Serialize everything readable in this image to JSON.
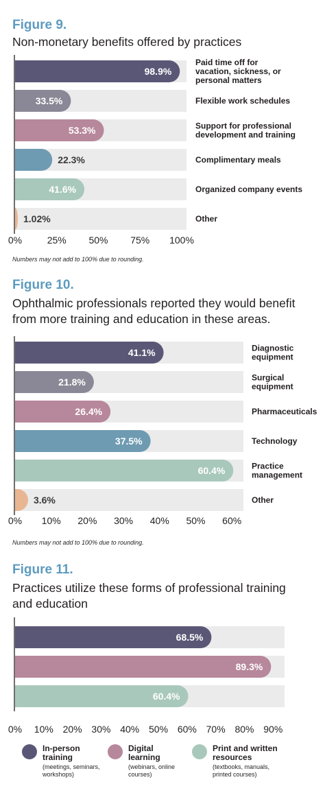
{
  "figures": [
    {
      "title": "Figure 9.",
      "subtitle": "Non-monetary benefits offered by practices",
      "note": "Numbers may not add to 100% due to rounding."
    },
    {
      "title": "Figure 10.",
      "subtitle": "Ophthalmic professionals reported they would benefit from more training and education in these areas.",
      "note": "Numbers may not add to 100% due to rounding."
    },
    {
      "title": "Figure 11.",
      "subtitle": "Practices utilize these forms of professional training and education",
      "note": ""
    }
  ],
  "chart_data": [
    {
      "type": "bar",
      "orientation": "horizontal",
      "title": "Non-monetary benefits offered by practices",
      "categories": [
        "Paid time off for vacation, sickness, or personal matters",
        "Flexible work schedules",
        "Support for professional development and training",
        "Complimentary meals",
        "Organized company events",
        "Other"
      ],
      "values": [
        98.9,
        33.5,
        53.3,
        22.3,
        41.6,
        1.02
      ],
      "value_labels": [
        "98.9%",
        "33.5%",
        "53.3%",
        "22.3%",
        "41.6%",
        "1.02%"
      ],
      "colors": [
        "#5a5776",
        "#8a8896",
        "#b7879b",
        "#6e9bb2",
        "#a9c8bc",
        "#e8b692"
      ],
      "xlim": [
        0,
        100
      ],
      "ticks": [
        "0%",
        "25%",
        "50%",
        "75%",
        "100%"
      ],
      "tick_values": [
        0,
        25,
        50,
        75,
        100
      ],
      "grid": false
    },
    {
      "type": "bar",
      "orientation": "horizontal",
      "title": "Ophthalmic professionals reported they would benefit from more training and education in these areas.",
      "categories": [
        "Diagnostic equipment",
        "Surgical equipment",
        "Pharmaceuticals",
        "Technology",
        "Practice management",
        "Other"
      ],
      "values": [
        41.1,
        21.8,
        26.4,
        37.5,
        60.4,
        3.6
      ],
      "value_labels": [
        "41.1%",
        "21.8%",
        "26.4%",
        "37.5%",
        "60.4%",
        "3.6%"
      ],
      "colors": [
        "#5a5776",
        "#8a8896",
        "#b7879b",
        "#6e9bb2",
        "#a9c8bc",
        "#e8b692"
      ],
      "xlim": [
        0,
        63
      ],
      "ticks": [
        "0%",
        "10%",
        "20%",
        "30%",
        "40%",
        "50%",
        "60%"
      ],
      "tick_values": [
        0,
        10,
        20,
        30,
        40,
        50,
        60
      ],
      "grid": false
    },
    {
      "type": "bar",
      "orientation": "horizontal",
      "title": "Practices utilize these forms of professional training and education",
      "categories": [
        "In-person training",
        "Digital learning",
        "Print and written resources"
      ],
      "values": [
        68.5,
        89.3,
        60.4
      ],
      "value_labels": [
        "68.5%",
        "89.3%",
        "60.4%"
      ],
      "colors": [
        "#5a5776",
        "#b7879b",
        "#a9c8bc"
      ],
      "xlim": [
        0,
        94
      ],
      "ticks": [
        "0%",
        "10%",
        "20%",
        "30%",
        "40%",
        "50%",
        "60%",
        "70%",
        "80%",
        "90%"
      ],
      "tick_values": [
        0,
        10,
        20,
        30,
        40,
        50,
        60,
        70,
        80,
        90
      ],
      "grid": false,
      "legend": {
        "position": "bottom",
        "items": [
          {
            "label": "In-person\ntraining",
            "detail": "(meetings, seminars,\nworkshops)",
            "color": "#5a5776"
          },
          {
            "label": "Digital\nlearning",
            "detail": "(webinars, online\ncourses)",
            "color": "#b7879b"
          },
          {
            "label": "Print and written\nresources",
            "detail": "(textbooks, manuals,\nprinted courses)",
            "color": "#a9c8bc"
          }
        ]
      }
    }
  ]
}
